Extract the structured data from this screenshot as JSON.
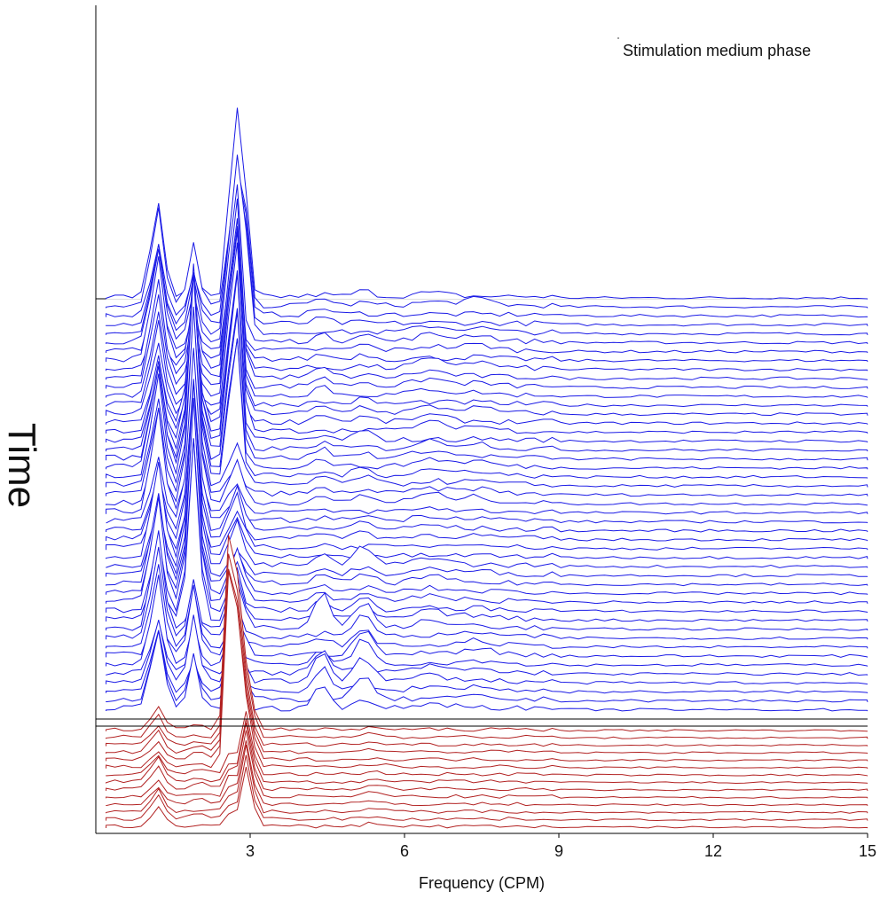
{
  "chart_data": {
    "type": "line",
    "subtype": "waterfall (stacked spectra over time)",
    "title": "",
    "annotation": "Stimulation medium phase",
    "xlabel": "Frequency (CPM)",
    "ylabel": "Time",
    "xlim": [
      0,
      15
    ],
    "x_ticks": [
      3,
      6,
      9,
      12,
      15
    ],
    "x_tick_labels": [
      "3",
      "6",
      "9",
      "12",
      "15"
    ],
    "grid": false,
    "legend": "none",
    "series_colors": {
      "baseline_phase": "#b22222",
      "stimulation_phase": "#1a1ae6",
      "separator": "#000000"
    },
    "phases": [
      {
        "name_key": "baseline",
        "trace_count": 14,
        "dominant_peaks_cpm": [
          1.2,
          2.7,
          3.0,
          5.4
        ]
      },
      {
        "name_key": "stimulation",
        "trace_count": 47,
        "dominant_peaks_cpm": [
          1.2,
          1.9,
          2.7,
          4.4,
          5.2
        ]
      }
    ]
  }
}
